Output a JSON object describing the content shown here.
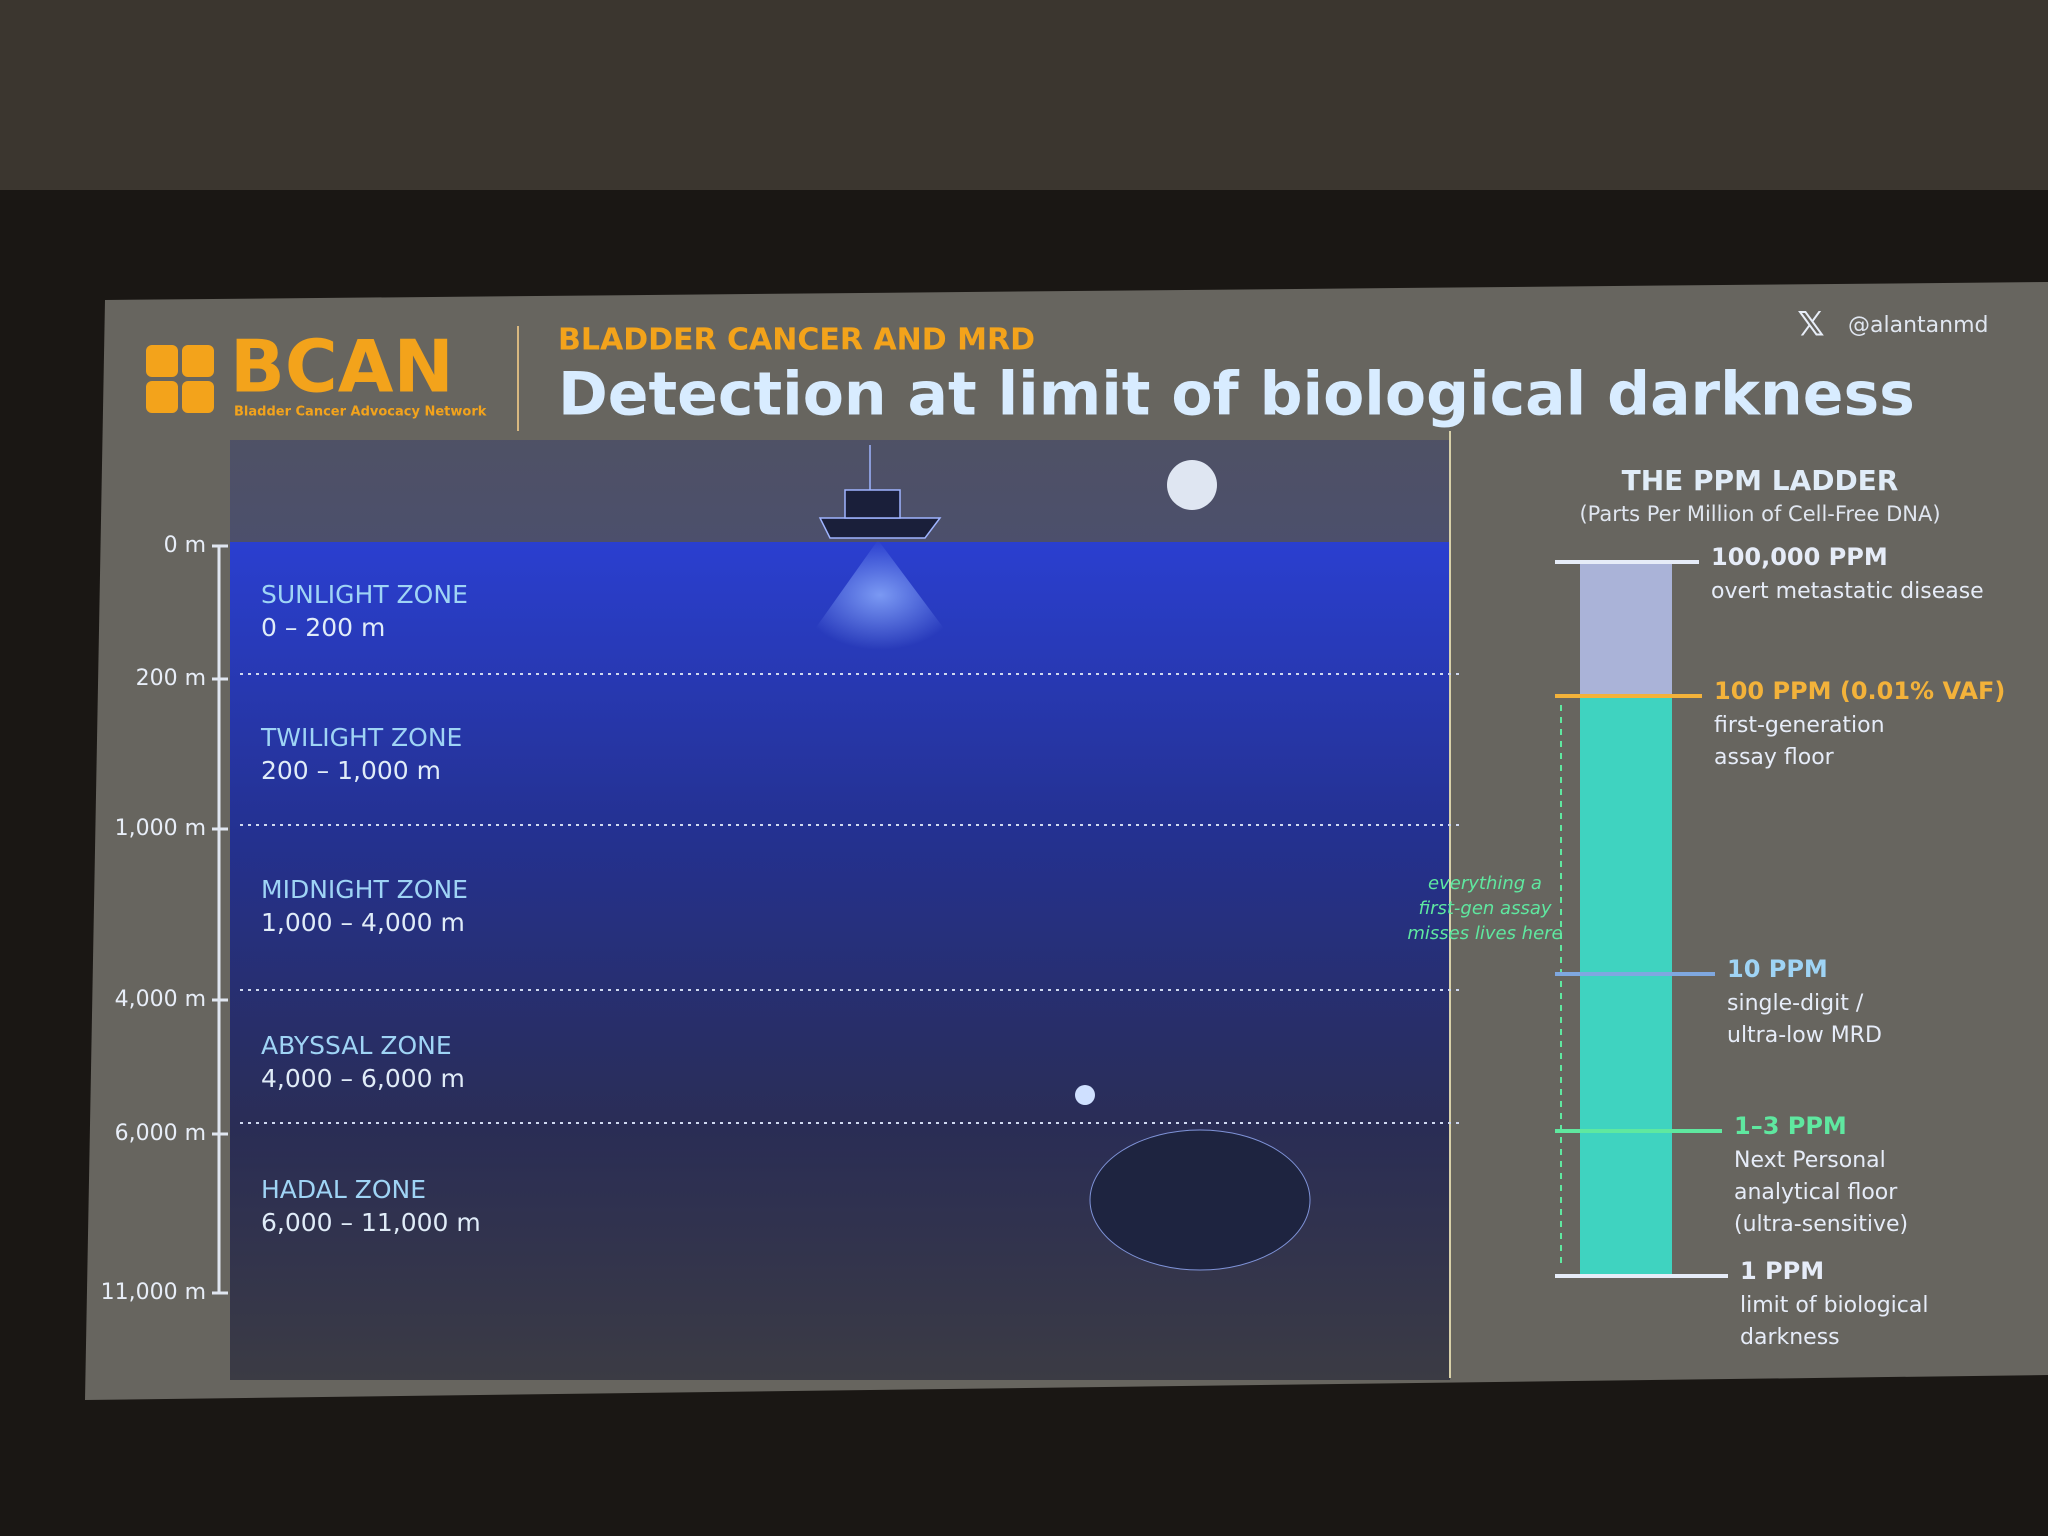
{
  "header": {
    "logo": "BCAN",
    "logo_subtitle": "Bladder Cancer Advocacy Network",
    "kicker": "BLADDER CANCER AND MRD",
    "title": "Detection at limit of biological darkness",
    "handle": "@alantanmd"
  },
  "depth_axis": [
    "0 m",
    "200 m",
    "1,000 m",
    "4,000 m",
    "6,000 m",
    "11,000 m"
  ],
  "zones": [
    {
      "name": "SUNLIGHT ZONE",
      "range": "0 – 200 m"
    },
    {
      "name": "TWILIGHT ZONE",
      "range": "200 – 1,000 m"
    },
    {
      "name": "MIDNIGHT ZONE",
      "range": "1,000 – 4,000 m"
    },
    {
      "name": "ABYSSAL ZONE",
      "range": "4,000 – 6,000 m"
    },
    {
      "name": "HADAL ZONE",
      "range": "6,000 – 11,000 m"
    }
  ],
  "ladder": {
    "title": "THE PPM LADDER",
    "subtitle": "(Parts Per Million of Cell-Free DNA)",
    "levels": [
      {
        "label": "100,000 PPM",
        "lines": [
          "overt metastatic disease"
        ]
      },
      {
        "label": "100 PPM (0.01% VAF)",
        "lines": [
          "first-generation",
          "assay floor"
        ]
      },
      {
        "label": "10 PPM",
        "lines": [
          "single-digit /",
          "ultra-low MRD"
        ]
      },
      {
        "label": "1–3 PPM",
        "lines": [
          "Next Personal",
          "analytical floor",
          "(ultra-sensitive)"
        ]
      },
      {
        "label": "1 PPM",
        "lines": [
          "limit of biological",
          "darkness"
        ]
      }
    ],
    "annotation": [
      "everything a",
      "first-gen assay",
      "misses lives here"
    ]
  }
}
